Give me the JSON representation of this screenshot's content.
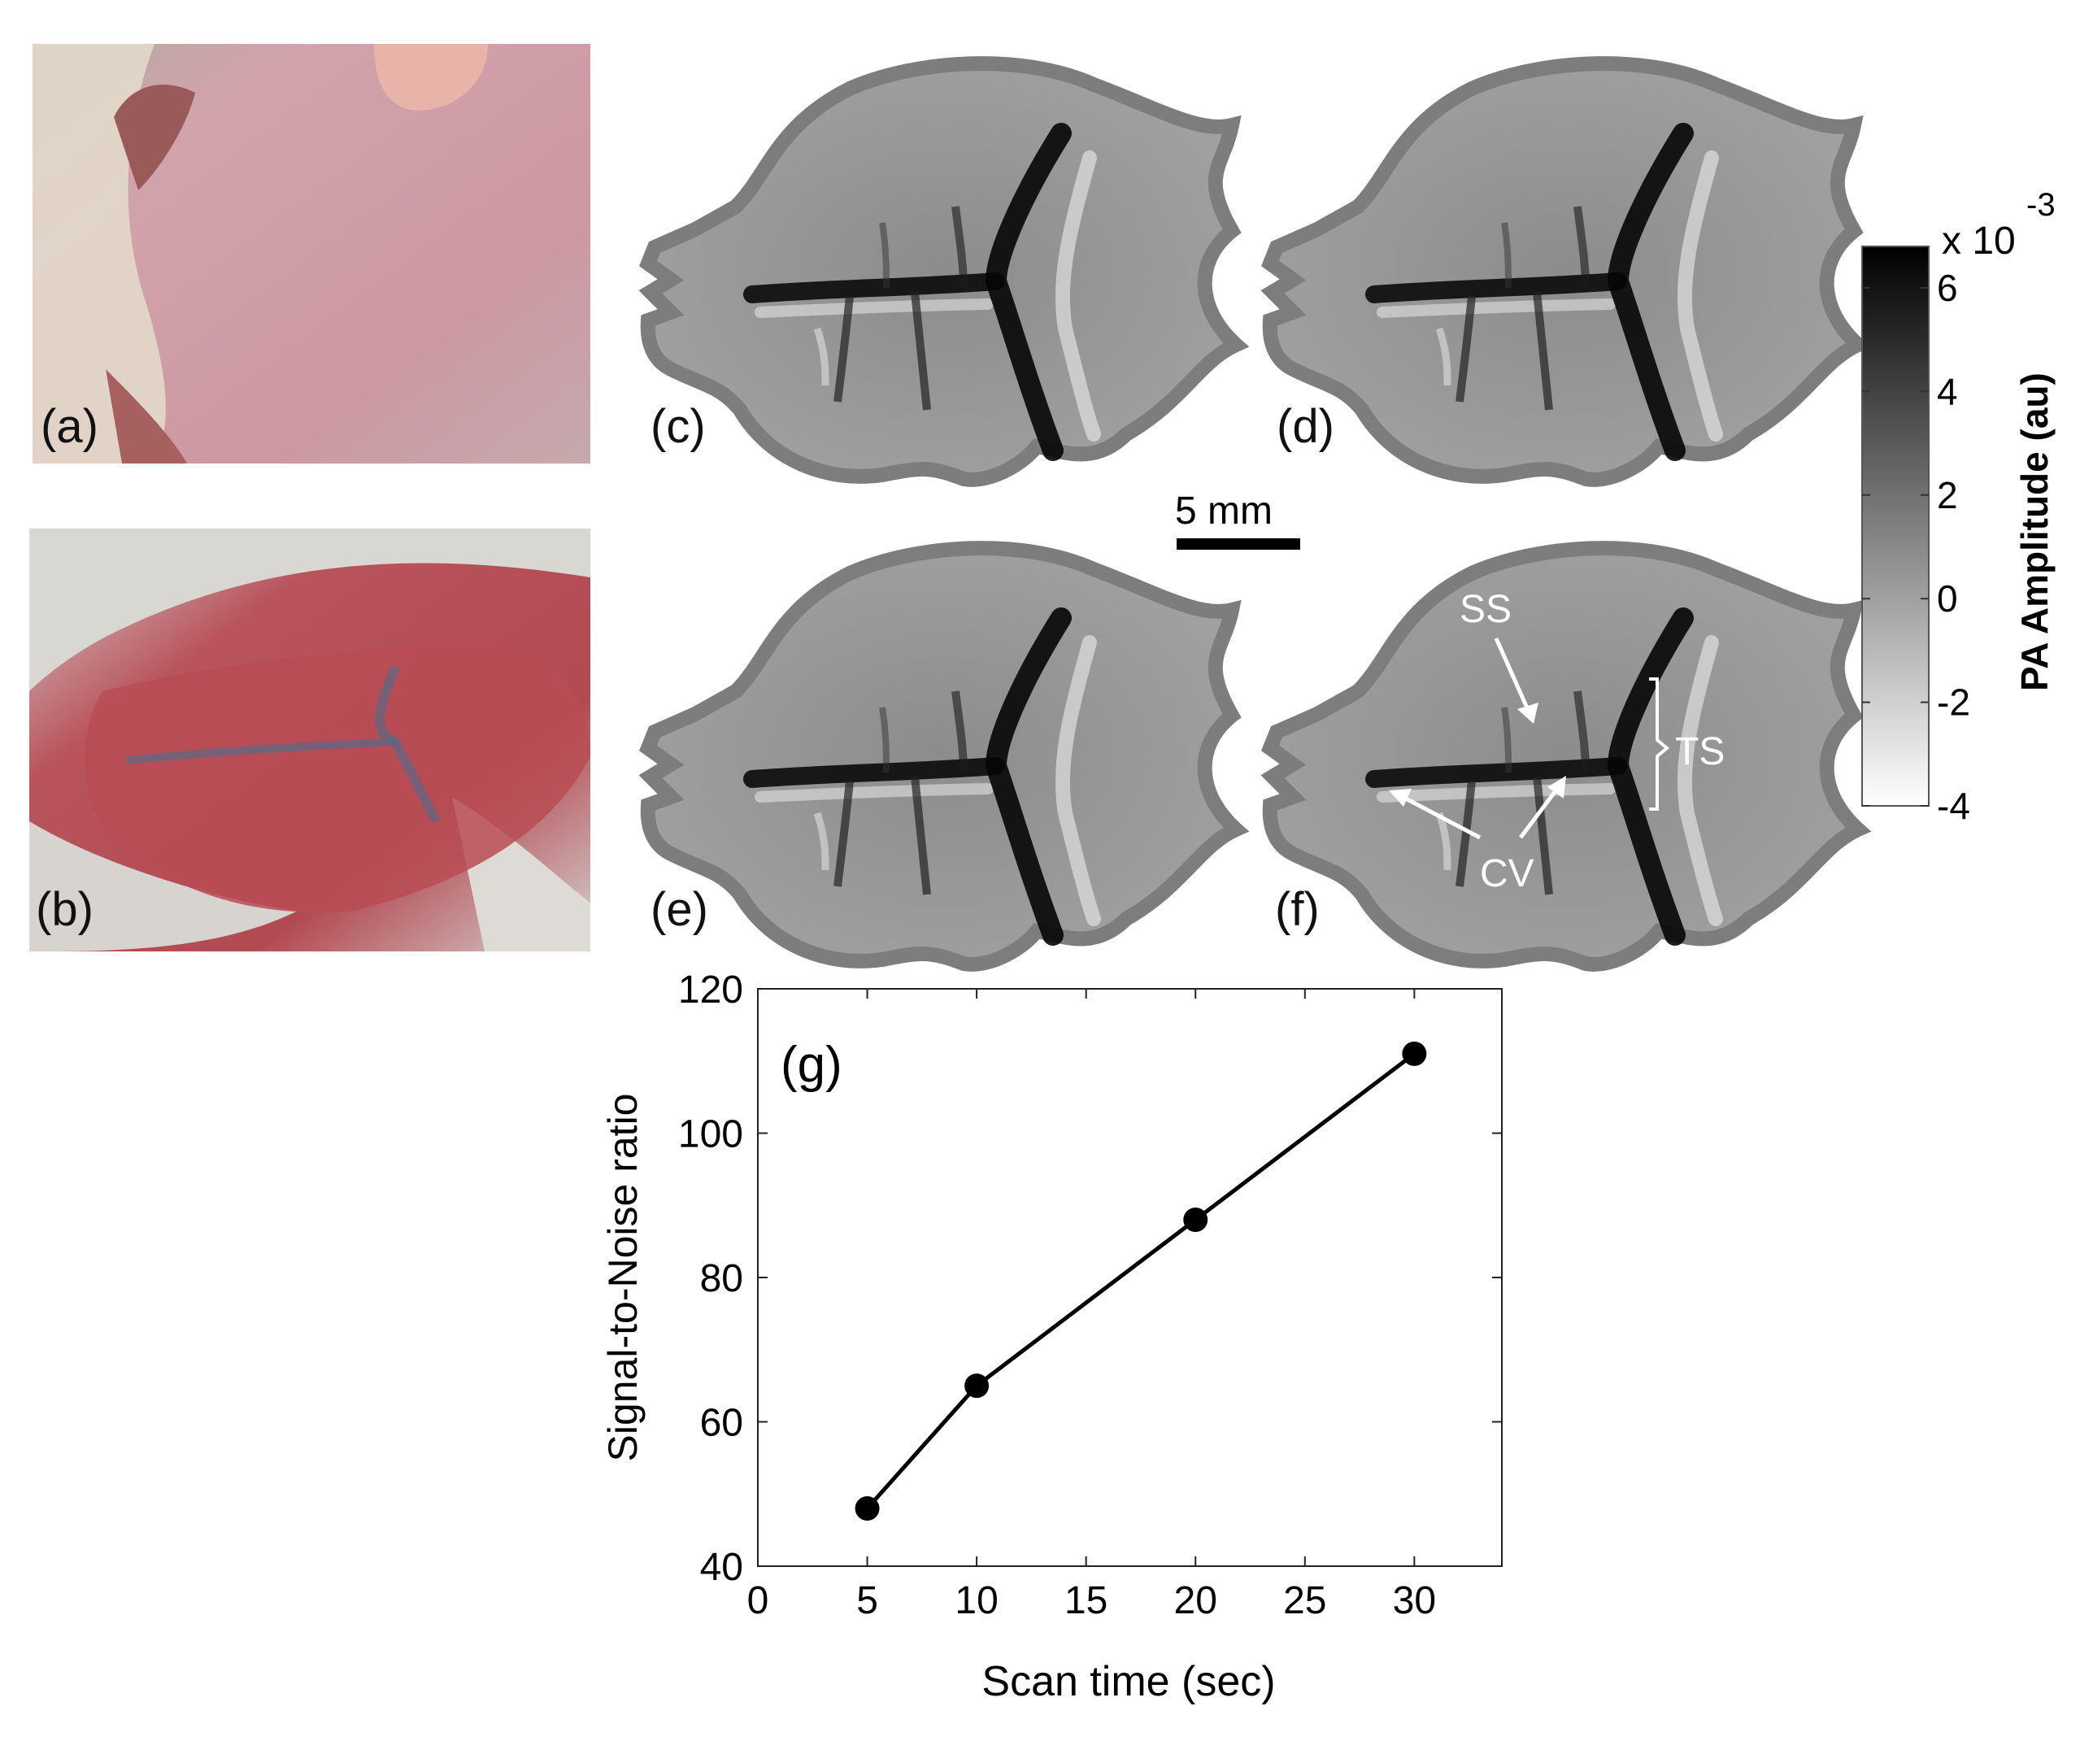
{
  "figure": {
    "panels": [
      {
        "id": "a",
        "label": "(a)",
        "kind": "photo",
        "description_color": "#c99fa6"
      },
      {
        "id": "b",
        "label": "(b)",
        "kind": "photo",
        "description_color": "#b8525a"
      },
      {
        "id": "c",
        "label": "(c)",
        "kind": "pa-image"
      },
      {
        "id": "d",
        "label": "(d)",
        "kind": "pa-image"
      },
      {
        "id": "e",
        "label": "(e)",
        "kind": "pa-image"
      },
      {
        "id": "f",
        "label": "(f)",
        "kind": "pa-image"
      }
    ],
    "scale_bar": {
      "label": "5 mm"
    },
    "annotations": {
      "ss": "SS",
      "ts": "TS",
      "cv": "CV"
    },
    "colorbar": {
      "exponent_prefix": "x 10",
      "exponent": "-3",
      "label": "PA Amplitude (au)",
      "ticks": [
        "6",
        "4",
        "2",
        "0",
        "-2",
        "-4"
      ],
      "range": [
        -4,
        6.8
      ],
      "colors": {
        "low": "#ffffff",
        "high": "#000000"
      }
    }
  },
  "chart_data": {
    "type": "line",
    "panel_label": "(g)",
    "xlabel": "Scan time (sec)",
    "ylabel": "Signal-to-Noise ratio",
    "xlim": [
      0,
      34
    ],
    "ylim": [
      40,
      120
    ],
    "xticks": [
      0,
      5,
      10,
      15,
      20,
      25,
      30
    ],
    "yticks": [
      40,
      60,
      80,
      100,
      120
    ],
    "grid": false,
    "series": [
      {
        "x": [
          5,
          10,
          20,
          30
        ],
        "y": [
          48,
          65,
          88,
          111
        ],
        "color": "#000000"
      }
    ]
  }
}
